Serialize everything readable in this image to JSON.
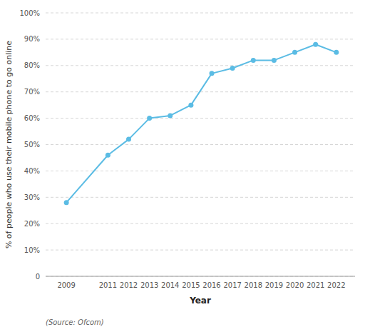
{
  "chart_data": {
    "type": "line",
    "x": [
      2009,
      2011,
      2012,
      2013,
      2014,
      2015,
      2016,
      2017,
      2018,
      2019,
      2020,
      2021,
      2022
    ],
    "values": [
      28,
      46,
      52,
      60,
      61,
      65,
      77,
      79,
      82,
      82,
      85,
      88,
      85
    ],
    "color": "#5bbce4",
    "marker": "circle",
    "x_label": "Year",
    "y_label": "% of people who use their mobile phone to go online",
    "annotations": [
      "(Source: Ofcom)"
    ],
    "xlim": [
      2008.0,
      2022.9
    ],
    "xticks": [
      2009,
      2011,
      2012,
      2013,
      2014,
      2015,
      2016,
      2017,
      2018,
      2019,
      2020,
      2021,
      2022
    ],
    "ylim": [
      0,
      100
    ],
    "yticks": [
      0,
      {
        "value": 10,
        "label": "10%"
      },
      {
        "value": 20,
        "label": "20%"
      },
      {
        "value": 30,
        "label": "30%"
      },
      {
        "value": 40,
        "label": "40%"
      },
      {
        "value": 50,
        "label": "50%"
      },
      {
        "value": 60,
        "label": "60%"
      },
      {
        "value": 70,
        "label": "70%"
      },
      {
        "value": 80,
        "label": "80%"
      },
      {
        "value": 90,
        "label": "90%"
      },
      {
        "value": 100,
        "label": "100%"
      }
    ],
    "grid": true
  }
}
